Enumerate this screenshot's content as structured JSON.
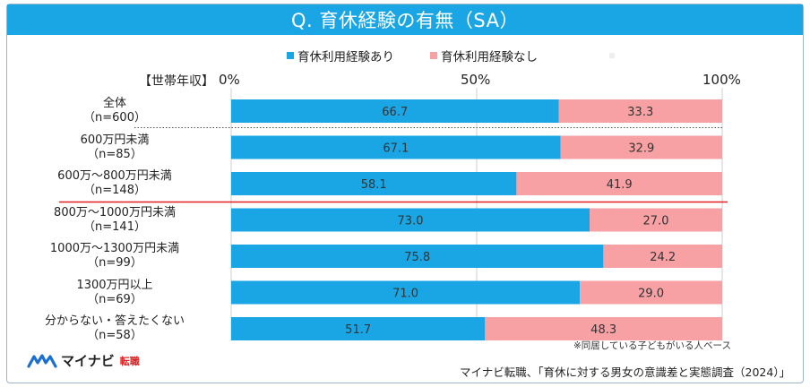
{
  "title": "Q. 育休経験の有無（SA）",
  "axis_group_label": "【世帯年収】",
  "ticks": [
    "0%",
    "50%",
    "100%"
  ],
  "note": "※同居している子どもがいる人ベース",
  "source": "マイナビ転職、「育休に対する男女の意識差と実態調査（2024）」",
  "logo": {
    "name": "マイナビ",
    "sub": "転職",
    "icon": "mynavi-logo-icon"
  },
  "colors": {
    "title_bg": "#1aa6e4",
    "series1": "#1aa6e4",
    "series2": "#f7a1a4",
    "divider_red": "#e02020"
  },
  "chart_data": {
    "type": "bar",
    "orientation": "horizontal",
    "stacked": true,
    "xlim": [
      0,
      100
    ],
    "grid": true,
    "legend": "top",
    "categories": [
      {
        "line1": "全体",
        "line2": "（n=600）"
      },
      {
        "line1": "600万円未満",
        "line2": "（n=85）"
      },
      {
        "line1": "600万～800万円未満",
        "line2": "（n=148）"
      },
      {
        "line1": "800万～1000万円未満",
        "line2": "（n=141）"
      },
      {
        "line1": "1000万～1300万円未満",
        "line2": "（n=99）"
      },
      {
        "line1": "1300万円以上",
        "line2": "（n=69）"
      },
      {
        "line1": "分からない・答えたくない",
        "line2": "（n=58）"
      }
    ],
    "series": [
      {
        "name": "育休利用経験あり",
        "values": [
          66.7,
          67.1,
          58.1,
          73.0,
          75.8,
          71.0,
          51.7
        ],
        "labels": [
          "66.7",
          "67.1",
          "58.1",
          "73.0",
          "75.8",
          "71.0",
          "51.7"
        ]
      },
      {
        "name": "育休利用経験なし",
        "values": [
          33.3,
          32.9,
          41.9,
          27.0,
          24.2,
          29.0,
          48.3
        ],
        "labels": [
          "33.3",
          "32.9",
          "41.9",
          "27.0",
          "24.2",
          "29.0",
          "48.3"
        ]
      }
    ]
  }
}
